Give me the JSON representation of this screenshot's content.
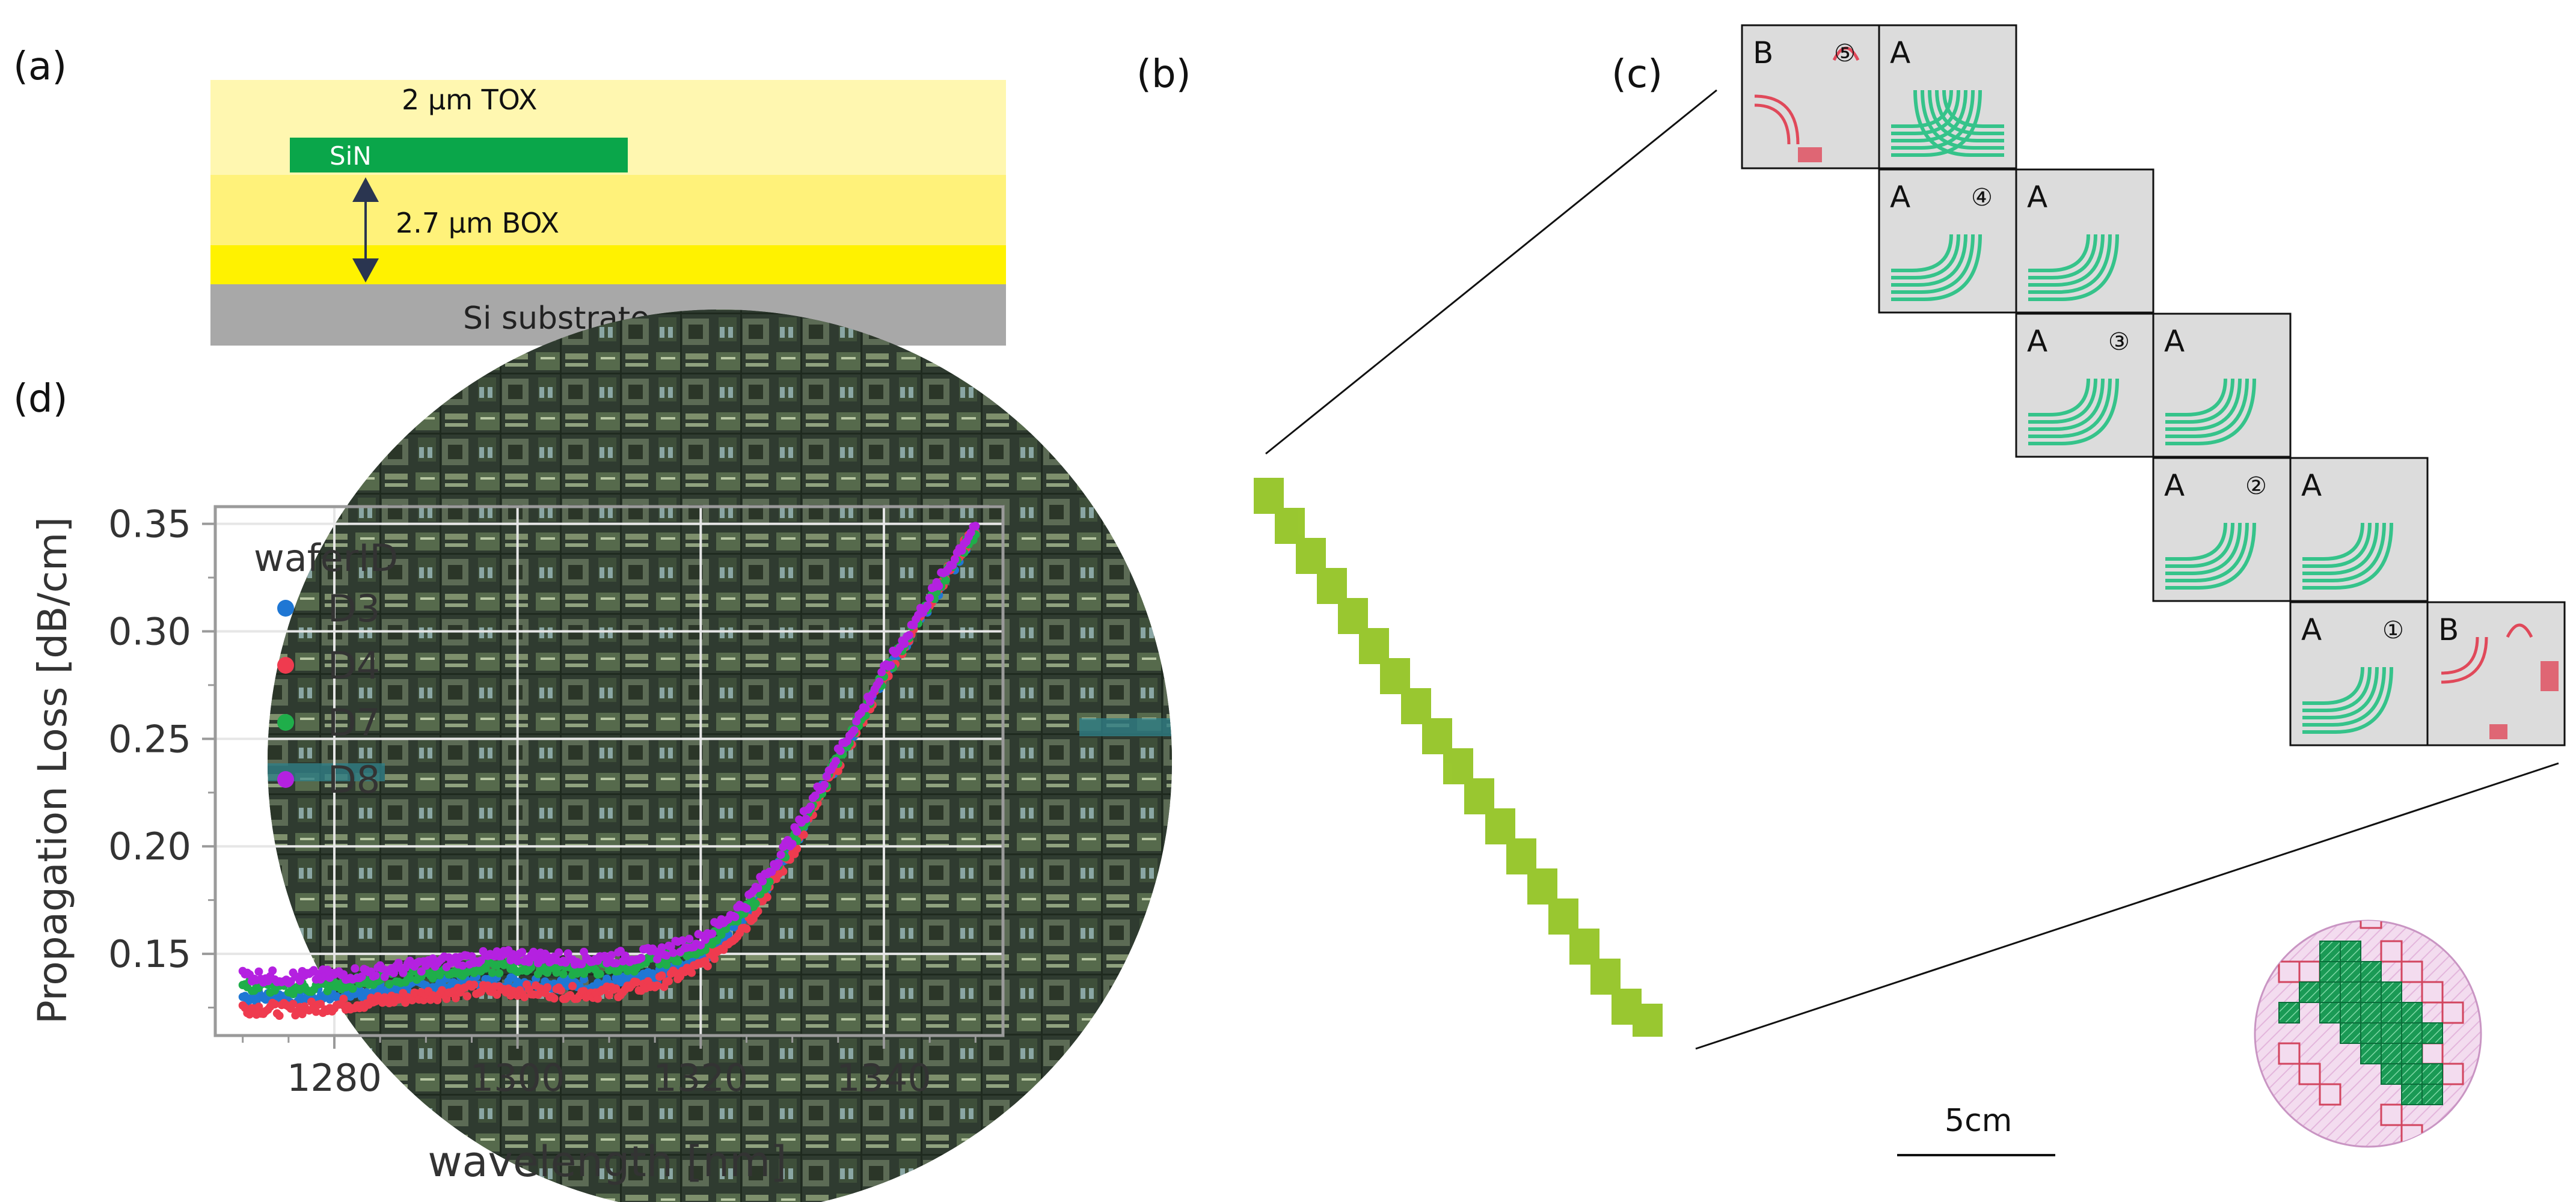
{
  "panel_labels": {
    "a": "(a)",
    "b": "(b)",
    "c": "(c)",
    "d": "(d)"
  },
  "stack": {
    "tox": "2 µm TOX",
    "sin": "SiN",
    "box": "2.7 µm BOX",
    "substrate": "Si substrate"
  },
  "wafer": {
    "scale_label": "5cm"
  },
  "reticles": {
    "row1": {
      "left": "B",
      "right": "A",
      "marker": "⑤"
    },
    "row2": {
      "left": "A",
      "right": "A",
      "marker": "④"
    },
    "row3": {
      "left": "A",
      "right": "A",
      "marker": "③"
    },
    "row4": {
      "left": "A",
      "right": "A",
      "marker": "②"
    },
    "row5": {
      "left": "A",
      "right": "B",
      "marker": "①"
    }
  },
  "colors": {
    "D3": "#1f77d4",
    "D4": "#ef3b4f",
    "D7": "#1fae4a",
    "D8": "#b421e0",
    "sin_green": "#0aa64a",
    "wafer_highlight": "#8fc21a"
  },
  "chart_data": {
    "type": "line",
    "title": "",
    "xlabel": "wavelength [nm]",
    "ylabel": "Propagation Loss [dB/cm]",
    "xlim": [
      1267,
      1353
    ],
    "ylim": [
      0.112,
      0.358
    ],
    "xticks": [
      1280,
      1300,
      1320,
      1340
    ],
    "yticks": [
      0.15,
      0.2,
      0.25,
      0.3,
      0.35
    ],
    "xtick_labels": [
      "1280",
      "1300",
      "1320",
      "1340"
    ],
    "ytick_labels": [
      "0.15",
      "0.20",
      "0.25",
      "0.30",
      "0.35"
    ],
    "legend_title": "waferID",
    "legend_position": "top-left",
    "x": [
      1270,
      1275,
      1280,
      1285,
      1290,
      1295,
      1300,
      1305,
      1310,
      1315,
      1320,
      1325,
      1330,
      1335,
      1340,
      1345,
      1350
    ],
    "series": [
      {
        "name": "D3",
        "values": [
          0.13,
          0.13,
          0.131,
          0.133,
          0.135,
          0.137,
          0.137,
          0.136,
          0.136,
          0.139,
          0.148,
          0.168,
          0.2,
          0.24,
          0.278,
          0.313,
          0.346
        ]
      },
      {
        "name": "D4",
        "values": [
          0.125,
          0.124,
          0.126,
          0.128,
          0.131,
          0.133,
          0.133,
          0.132,
          0.132,
          0.136,
          0.144,
          0.164,
          0.197,
          0.238,
          0.278,
          0.314,
          0.348
        ]
      },
      {
        "name": "D7",
        "values": [
          0.135,
          0.134,
          0.135,
          0.138,
          0.141,
          0.143,
          0.144,
          0.143,
          0.143,
          0.146,
          0.153,
          0.17,
          0.201,
          0.241,
          0.279,
          0.314,
          0.347
        ]
      },
      {
        "name": "D8",
        "values": [
          0.14,
          0.139,
          0.14,
          0.142,
          0.145,
          0.148,
          0.149,
          0.148,
          0.148,
          0.15,
          0.157,
          0.174,
          0.204,
          0.243,
          0.281,
          0.316,
          0.35
        ]
      }
    ]
  }
}
